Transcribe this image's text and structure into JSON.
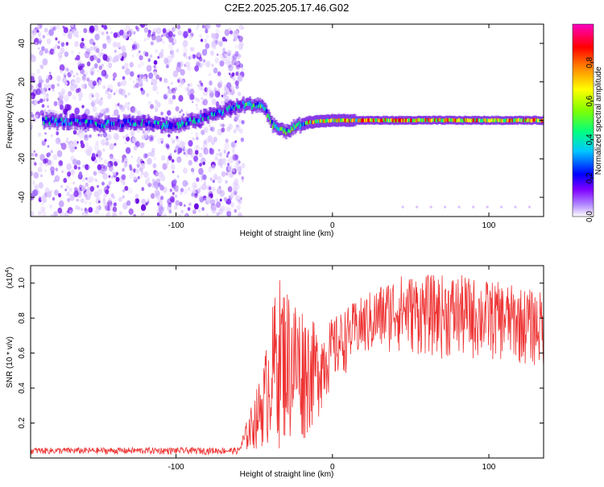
{
  "title": "C2E2.2025.205.17.46.G02",
  "chart_data": [
    {
      "type": "heatmap",
      "xlabel": "Height of straight line (km)",
      "ylabel": "Frequency (Hz)",
      "xlim": [
        -193,
        135
      ],
      "ylim": [
        -50,
        50
      ],
      "xticks": [
        -100,
        0,
        100
      ],
      "yticks": [
        -40,
        -20,
        0,
        20,
        40
      ],
      "colorbar": {
        "label": "Normalized spectral amplitude",
        "range": [
          0.0,
          1.0
        ],
        "ticks": [
          0.0,
          0.2,
          0.4,
          0.6,
          0.8
        ],
        "colors": [
          "#ffffff",
          "#b38cff",
          "#8000ff",
          "#0000ff",
          "#00c8ff",
          "#00ff80",
          "#80ff00",
          "#ffff00",
          "#ff8000",
          "#ff0000",
          "#ff00c0"
        ]
      },
      "noise_region_x": [
        -193,
        -57
      ],
      "signal_track": [
        {
          "x": -185,
          "f": 0
        },
        {
          "x": -150,
          "f": -2
        },
        {
          "x": -120,
          "f": -1
        },
        {
          "x": -100,
          "f": -3
        },
        {
          "x": -57,
          "f": 8
        },
        {
          "x": -45,
          "f": 8
        },
        {
          "x": -38,
          "f": -2
        },
        {
          "x": -32,
          "f": -6
        },
        {
          "x": -25,
          "f": -4
        },
        {
          "x": -15,
          "f": -1
        },
        {
          "x": 0,
          "f": 0
        },
        {
          "x": 15,
          "f": 0
        },
        {
          "x": 50,
          "f": 0
        },
        {
          "x": 100,
          "f": 0
        },
        {
          "x": 135,
          "f": 0
        }
      ]
    },
    {
      "type": "line",
      "xlabel": "Height of straight line (km)",
      "ylabel": "SNR (10 * v/v)",
      "multiplier_label": "(x10",
      "multiplier_exp": "4",
      "xlim": [
        -193,
        135
      ],
      "ylim": [
        0.0,
        1.1
      ],
      "xticks": [
        -100,
        0,
        100
      ],
      "yticks": [
        0.2,
        0.4,
        0.6,
        0.8,
        1.0
      ],
      "color": "#ee3333",
      "envelope": [
        {
          "x": -193,
          "lo": 0.02,
          "hi": 0.06
        },
        {
          "x": -60,
          "lo": 0.02,
          "hi": 0.06
        },
        {
          "x": -45,
          "lo": 0.05,
          "hi": 0.5
        },
        {
          "x": -35,
          "lo": 0.05,
          "hi": 1.05
        },
        {
          "x": -20,
          "lo": 0.05,
          "hi": 0.9
        },
        {
          "x": -10,
          "lo": 0.2,
          "hi": 0.75
        },
        {
          "x": 0,
          "lo": 0.4,
          "hi": 0.8
        },
        {
          "x": 15,
          "lo": 0.55,
          "hi": 0.9
        },
        {
          "x": 40,
          "lo": 0.6,
          "hi": 1.05
        },
        {
          "x": 80,
          "lo": 0.55,
          "hi": 1.05
        },
        {
          "x": 110,
          "lo": 0.55,
          "hi": 1.0
        },
        {
          "x": 135,
          "lo": 0.5,
          "hi": 0.95
        }
      ]
    }
  ]
}
